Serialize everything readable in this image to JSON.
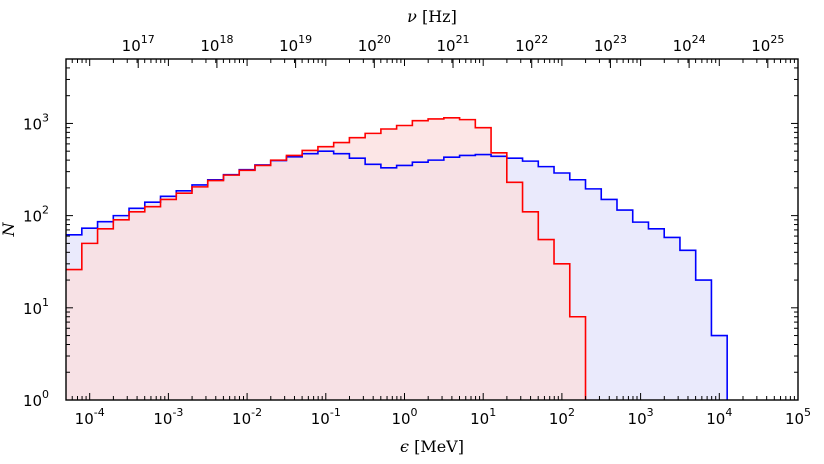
{
  "chart_data": {
    "type": "area",
    "x_axis": {
      "label_symbol": "ϵ",
      "label_unit": " [MeV]",
      "scale": "log",
      "xlim": [
        5e-05,
        100000
      ],
      "ticks": [
        {
          "base": "10",
          "exp": "-4",
          "value": 0.0001
        },
        {
          "base": "10",
          "exp": "-3",
          "value": 0.001
        },
        {
          "base": "10",
          "exp": "-2",
          "value": 0.01
        },
        {
          "base": "10",
          "exp": "-1",
          "value": 0.1
        },
        {
          "base": "10",
          "exp": "0",
          "value": 1
        },
        {
          "base": "10",
          "exp": "1",
          "value": 10
        },
        {
          "base": "10",
          "exp": "2",
          "value": 100
        },
        {
          "base": "10",
          "exp": "3",
          "value": 1000
        },
        {
          "base": "10",
          "exp": "4",
          "value": 10000
        },
        {
          "base": "10",
          "exp": "5",
          "value": 100000
        }
      ]
    },
    "top_axis": {
      "label_symbol": "ν",
      "label_unit": " [Hz]",
      "scale": "log",
      "ticks": [
        {
          "base": "10",
          "exp": "17",
          "value": 1e+17
        },
        {
          "base": "10",
          "exp": "18",
          "value": 1e+18
        },
        {
          "base": "10",
          "exp": "19",
          "value": 1e+19
        },
        {
          "base": "10",
          "exp": "20",
          "value": 1e+20
        },
        {
          "base": "10",
          "exp": "21",
          "value": 1e+21
        },
        {
          "base": "10",
          "exp": "22",
          "value": 1e+22
        },
        {
          "base": "10",
          "exp": "23",
          "value": 1e+23
        },
        {
          "base": "10",
          "exp": "24",
          "value": 1e+24
        },
        {
          "base": "10",
          "exp": "25",
          "value": 1e+25
        }
      ]
    },
    "y_axis": {
      "label": "N",
      "scale": "log",
      "ylim": [
        1,
        5000
      ],
      "ticks": [
        {
          "base": "10",
          "exp": "0",
          "value": 1
        },
        {
          "base": "10",
          "exp": "1",
          "value": 10
        },
        {
          "base": "10",
          "exp": "2",
          "value": 100
        },
        {
          "base": "10",
          "exp": "3",
          "value": 1000
        }
      ]
    },
    "grid": false,
    "legend": "none",
    "bin_edges_log10": [
      -4.3,
      -4.1,
      -3.9,
      -3.7,
      -3.5,
      -3.3,
      -3.1,
      -2.9,
      -2.7,
      -2.5,
      -2.3,
      -2.1,
      -1.9,
      -1.7,
      -1.5,
      -1.3,
      -1.1,
      -0.9,
      -0.7,
      -0.5,
      -0.3,
      -0.1,
      0.1,
      0.3,
      0.5,
      0.7,
      0.9,
      1.1,
      1.3,
      1.5,
      1.7,
      1.9,
      2.1,
      2.3,
      2.5,
      2.7,
      2.9,
      3.1,
      3.3,
      3.5,
      3.7,
      3.9,
      4.1,
      4.3
    ],
    "series": [
      {
        "color": "#0000ff",
        "fill": "#e3e3fb",
        "counts": [
          62,
          73,
          86,
          100,
          120,
          140,
          162,
          186,
          215,
          245,
          278,
          315,
          355,
          395,
          435,
          470,
          500,
          470,
          420,
          360,
          330,
          350,
          380,
          400,
          430,
          450,
          460,
          440,
          420,
          390,
          340,
          290,
          245,
          195,
          150,
          115,
          85,
          72,
          58,
          42,
          20,
          5
        ]
      },
      {
        "color": "#ff0000",
        "fill": "#fbdddd",
        "counts": [
          26,
          50,
          72,
          90,
          110,
          125,
          150,
          175,
          205,
          240,
          275,
          310,
          350,
          400,
          450,
          510,
          560,
          620,
          700,
          780,
          870,
          950,
          1070,
          1120,
          1150,
          1100,
          900,
          480,
          230,
          110,
          55,
          30,
          8
        ]
      }
    ]
  }
}
